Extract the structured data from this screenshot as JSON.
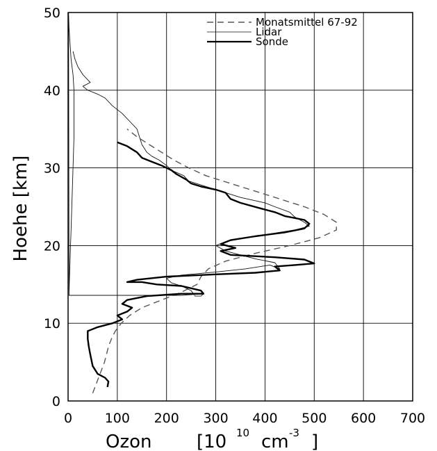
{
  "chart_data": {
    "type": "line",
    "title": "",
    "xlabel": "Ozon",
    "xlabel_unit": "[10",
    "xlabel_exp": "10",
    "xlabel_unit2": "cm",
    "xlabel_exp2": "-3",
    "xlabel_close": "]",
    "ylabel": "Hoehe [km]",
    "xlim": [
      0,
      700
    ],
    "ylim": [
      0,
      50
    ],
    "xticks": [
      "0",
      "100",
      "200",
      "300",
      "400",
      "500",
      "600",
      "700"
    ],
    "yticks": [
      "0",
      "10",
      "20",
      "30",
      "40",
      "50"
    ],
    "grid": true,
    "legend_position": "top-right",
    "series": [
      {
        "name": "Monatsmittel 67-92",
        "style": "dashed",
        "color": "#555555",
        "points": [
          [
            50,
            1
          ],
          [
            56,
            2
          ],
          [
            62,
            3
          ],
          [
            68,
            4
          ],
          [
            74,
            5
          ],
          [
            78,
            6
          ],
          [
            82,
            7
          ],
          [
            88,
            8
          ],
          [
            96,
            9
          ],
          [
            108,
            10
          ],
          [
            125,
            11
          ],
          [
            150,
            12
          ],
          [
            190,
            13
          ],
          [
            230,
            14
          ],
          [
            262,
            15
          ],
          [
            270,
            16
          ],
          [
            285,
            17
          ],
          [
            320,
            18
          ],
          [
            380,
            19
          ],
          [
            450,
            20
          ],
          [
            510,
            21
          ],
          [
            545,
            22
          ],
          [
            545,
            23
          ],
          [
            520,
            24
          ],
          [
            480,
            25
          ],
          [
            430,
            26
          ],
          [
            380,
            27
          ],
          [
            330,
            28
          ],
          [
            280,
            29
          ],
          [
            245,
            30
          ],
          [
            215,
            31
          ],
          [
            190,
            32
          ],
          [
            165,
            33
          ],
          [
            140,
            34
          ],
          [
            120,
            35
          ]
        ]
      },
      {
        "name": "Lidar",
        "style": "thin",
        "color": "#111111",
        "points": [
          [
            2,
            13.6
          ],
          [
            2,
            14
          ],
          [
            3,
            16
          ],
          [
            4,
            18
          ],
          [
            5,
            20
          ],
          [
            6,
            22
          ],
          [
            7,
            24
          ],
          [
            8,
            26
          ],
          [
            9,
            28
          ],
          [
            10,
            30
          ],
          [
            11,
            32
          ],
          [
            12,
            34
          ],
          [
            12,
            36
          ],
          [
            12,
            38
          ],
          [
            12,
            40
          ],
          [
            10,
            42
          ],
          [
            6,
            44
          ],
          [
            4,
            46
          ],
          [
            2,
            48
          ],
          [
            1,
            50
          ],
          [
            2,
            13.6
          ],
          [
            230,
            13.6
          ],
          [
            275,
            13.8
          ],
          [
            270,
            13.5
          ],
          [
            258,
            13.5
          ],
          [
            250,
            14.2
          ],
          [
            230,
            14.8
          ],
          [
            210,
            15.2
          ],
          [
            200,
            15.8
          ],
          [
            230,
            16.2
          ],
          [
            300,
            16.6
          ],
          [
            360,
            17
          ],
          [
            410,
            17.5
          ],
          [
            430,
            17
          ],
          [
            420,
            17.8
          ],
          [
            380,
            18.3
          ],
          [
            350,
            18.8
          ],
          [
            320,
            19.3
          ],
          [
            300,
            20
          ],
          [
            320,
            20.5
          ],
          [
            360,
            21
          ],
          [
            410,
            21.5
          ],
          [
            460,
            22
          ],
          [
            490,
            22.5
          ],
          [
            480,
            23
          ],
          [
            460,
            23.7
          ],
          [
            450,
            24.3
          ],
          [
            420,
            25
          ],
          [
            400,
            25.5
          ],
          [
            350,
            26.2
          ],
          [
            310,
            27
          ],
          [
            280,
            27.6
          ],
          [
            245,
            28.3
          ],
          [
            235,
            29
          ],
          [
            210,
            29.7
          ],
          [
            200,
            30.3
          ],
          [
            185,
            31
          ],
          [
            170,
            31.5
          ],
          [
            160,
            32
          ],
          [
            150,
            33
          ],
          [
            145,
            34
          ],
          [
            140,
            35
          ],
          [
            125,
            36
          ],
          [
            110,
            37
          ],
          [
            90,
            38
          ],
          [
            75,
            39
          ],
          [
            60,
            39.5
          ],
          [
            40,
            40
          ],
          [
            30,
            40.5
          ],
          [
            45,
            41
          ],
          [
            30,
            42
          ],
          [
            20,
            43
          ],
          [
            14,
            44
          ],
          [
            10,
            45
          ]
        ]
      },
      {
        "name": "Sonde",
        "style": "thick",
        "color": "#000000",
        "points": [
          [
            80,
            1.8
          ],
          [
            82,
            2.5
          ],
          [
            75,
            3
          ],
          [
            60,
            3.5
          ],
          [
            50,
            4.5
          ],
          [
            45,
            6
          ],
          [
            42,
            7
          ],
          [
            40,
            8
          ],
          [
            40,
            9
          ],
          [
            60,
            9.5
          ],
          [
            90,
            10
          ],
          [
            110,
            10.5
          ],
          [
            100,
            11
          ],
          [
            120,
            11.5
          ],
          [
            130,
            12
          ],
          [
            110,
            12.5
          ],
          [
            120,
            13
          ],
          [
            160,
            13.5
          ],
          [
            230,
            13.8
          ],
          [
            275,
            13.8
          ],
          [
            270,
            14.2
          ],
          [
            230,
            14.8
          ],
          [
            180,
            15
          ],
          [
            150,
            15.3
          ],
          [
            120,
            15.3
          ],
          [
            140,
            15.6
          ],
          [
            200,
            16
          ],
          [
            300,
            16.3
          ],
          [
            380,
            16.5
          ],
          [
            430,
            16.8
          ],
          [
            420,
            17.3
          ],
          [
            460,
            17.5
          ],
          [
            500,
            17.7
          ],
          [
            480,
            18.2
          ],
          [
            420,
            18.5
          ],
          [
            330,
            18.8
          ],
          [
            310,
            19.3
          ],
          [
            340,
            19.7
          ],
          [
            310,
            20.2
          ],
          [
            330,
            20.7
          ],
          [
            380,
            21.2
          ],
          [
            440,
            21.7
          ],
          [
            480,
            22.2
          ],
          [
            490,
            22.8
          ],
          [
            480,
            23.3
          ],
          [
            440,
            23.8
          ],
          [
            420,
            24.3
          ],
          [
            390,
            24.8
          ],
          [
            350,
            25.5
          ],
          [
            330,
            26
          ],
          [
            320,
            26.8
          ],
          [
            300,
            27.2
          ],
          [
            270,
            27.6
          ],
          [
            250,
            28
          ],
          [
            240,
            28.5
          ],
          [
            220,
            29.2
          ],
          [
            210,
            29.7
          ],
          [
            190,
            30.3
          ],
          [
            170,
            30.8
          ],
          [
            150,
            31.3
          ],
          [
            140,
            32
          ],
          [
            120,
            32.8
          ],
          [
            100,
            33.3
          ]
        ]
      }
    ]
  }
}
